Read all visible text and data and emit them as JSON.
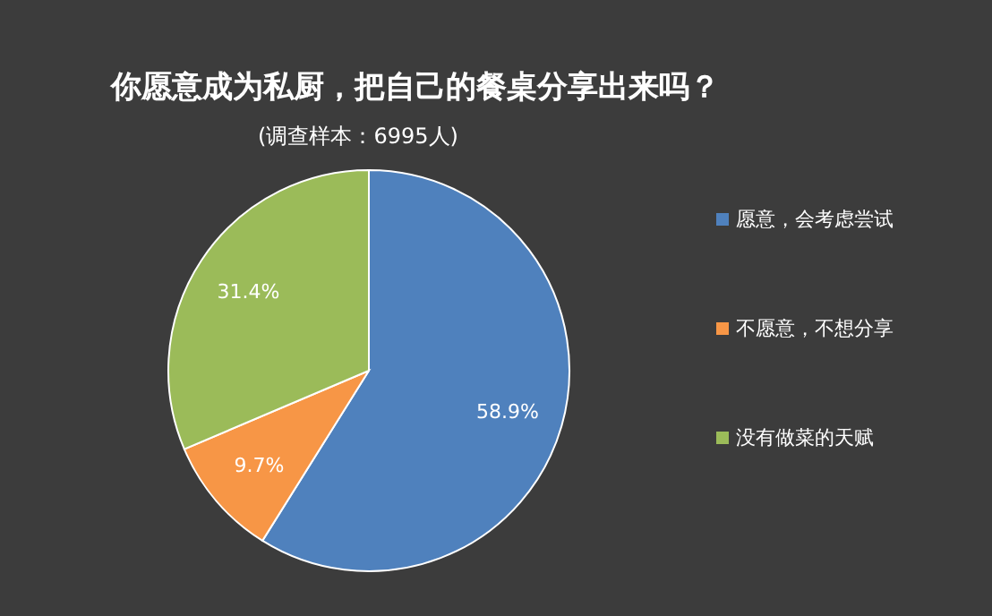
{
  "chart_data": {
    "type": "pie",
    "title": "你愿意成为私厨，把自己的餐桌分享出来吗？",
    "subtitle": "(调查样本：6995人)",
    "categories": [
      "愿意，会考虑尝试",
      "不愿意，不想分享",
      "没有做菜的天赋"
    ],
    "values": [
      58.9,
      9.7,
      31.4
    ],
    "colors": [
      "#4f81bd",
      "#f79646",
      "#9bbb59"
    ],
    "value_labels": [
      "58.9%",
      "9.7%",
      "31.4%"
    ],
    "legend": "right"
  }
}
